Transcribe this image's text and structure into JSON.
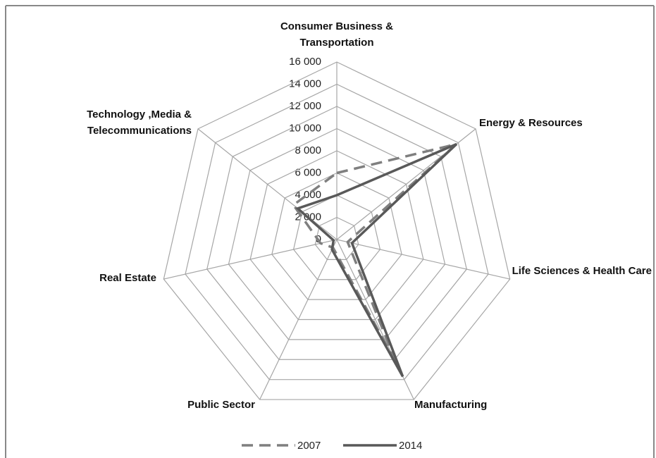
{
  "chart_data": {
    "type": "radar",
    "categories": [
      "Consumer Business & Transportation",
      "Energy & Resources",
      "Life Sciences & Health Care",
      "Manufacturing",
      "Public Sector",
      "Real Estate",
      "Technology ,Media & Telecommunications"
    ],
    "series": [
      {
        "name": "2007",
        "color": "#7f7f7f",
        "dashed": true,
        "values": [
          6000,
          13800,
          1000,
          12500,
          800,
          1500,
          5000
        ]
      },
      {
        "name": "2014",
        "color": "#595959",
        "dashed": false,
        "values": [
          4000,
          13800,
          1400,
          13700,
          1000,
          300,
          4500
        ]
      }
    ],
    "ylim": [
      0,
      16000
    ],
    "yticks": [
      0,
      {
        "value": 2000,
        "label": "2 000"
      },
      {
        "value": 4000,
        "label": "4 000"
      },
      {
        "value": 6000,
        "label": "6 000"
      },
      {
        "value": 8000,
        "label": "8 000"
      },
      {
        "value": 10000,
        "label": "10 000"
      },
      {
        "value": 12000,
        "label": "12 000"
      },
      {
        "value": 14000,
        "label": "14 000"
      },
      {
        "value": 16000,
        "label": "16 000"
      }
    ],
    "grid": true,
    "legend": "bottom"
  }
}
